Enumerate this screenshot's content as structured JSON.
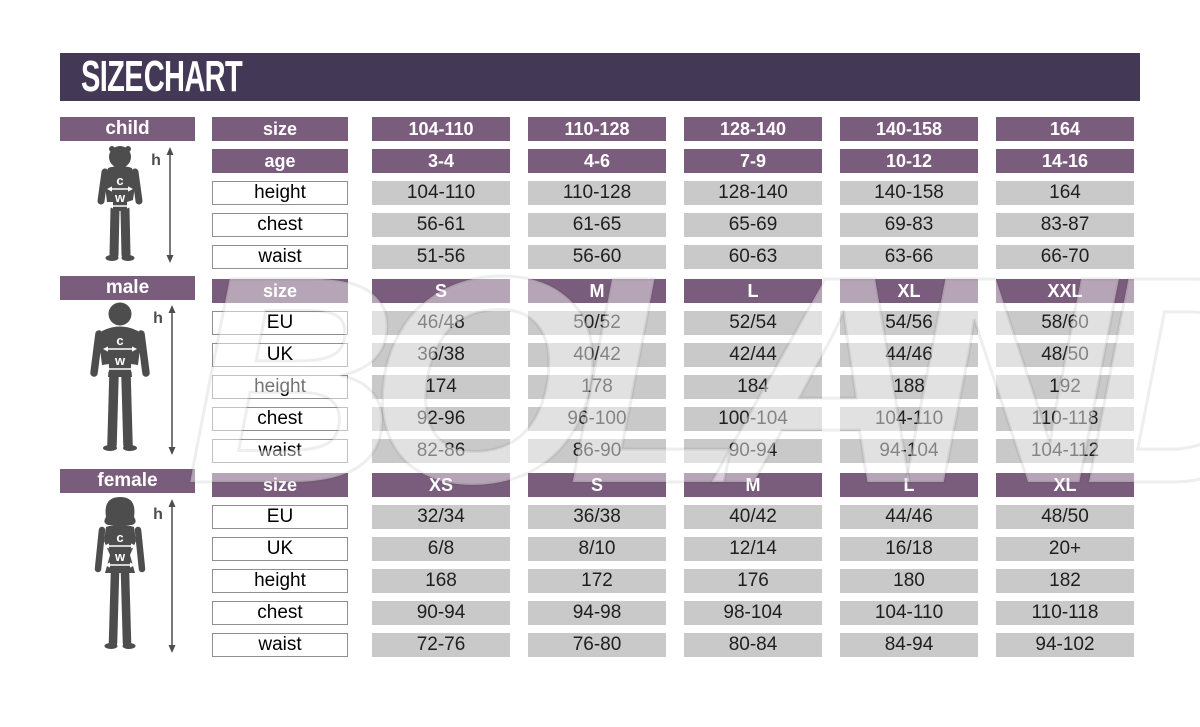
{
  "title": "SIZE CHART",
  "watermark": "BOLAND",
  "colors": {
    "banner_purple": "#443857",
    "header_plum": "#7a5c7d",
    "cell_gray": "#c9c9c9",
    "figure_gray": "#4d4d4d",
    "label_border": "#8f8f8f"
  },
  "figure_labels": {
    "height": "h",
    "chest": "c",
    "waist": "w"
  },
  "chart_data": [
    {
      "id": "child",
      "type": "table",
      "section_label": "child",
      "rows": [
        {
          "label": "size",
          "header": true,
          "values": [
            "104-110",
            "110-128",
            "128-140",
            "140-158",
            "164"
          ]
        },
        {
          "label": "age",
          "header": true,
          "values": [
            "3-4",
            "4-6",
            "7-9",
            "10-12",
            "14-16"
          ]
        },
        {
          "label": "height",
          "header": false,
          "values": [
            "104-110",
            "110-128",
            "128-140",
            "140-158",
            "164"
          ]
        },
        {
          "label": "chest",
          "header": false,
          "values": [
            "56-61",
            "61-65",
            "65-69",
            "69-83",
            "83-87"
          ]
        },
        {
          "label": "waist",
          "header": false,
          "values": [
            "51-56",
            "56-60",
            "60-63",
            "63-66",
            "66-70"
          ]
        }
      ]
    },
    {
      "id": "male",
      "type": "table",
      "section_label": "male",
      "rows": [
        {
          "label": "size",
          "header": true,
          "values": [
            "S",
            "M",
            "L",
            "XL",
            "XXL"
          ]
        },
        {
          "label": "EU",
          "header": false,
          "values": [
            "46/48",
            "50/52",
            "52/54",
            "54/56",
            "58/60"
          ]
        },
        {
          "label": "UK",
          "header": false,
          "values": [
            "36/38",
            "40/42",
            "42/44",
            "44/46",
            "48/50"
          ]
        },
        {
          "label": "height",
          "header": false,
          "values": [
            "174",
            "178",
            "184",
            "188",
            "192"
          ]
        },
        {
          "label": "chest",
          "header": false,
          "values": [
            "92-96",
            "96-100",
            "100-104",
            "104-110",
            "110-118"
          ]
        },
        {
          "label": "waist",
          "header": false,
          "values": [
            "82-86",
            "86-90",
            "90-94",
            "94-104",
            "104-112"
          ]
        }
      ]
    },
    {
      "id": "female",
      "type": "table",
      "section_label": "female",
      "rows": [
        {
          "label": "size",
          "header": true,
          "values": [
            "XS",
            "S",
            "M",
            "L",
            "XL"
          ]
        },
        {
          "label": "EU",
          "header": false,
          "values": [
            "32/34",
            "36/38",
            "40/42",
            "44/46",
            "48/50"
          ]
        },
        {
          "label": "UK",
          "header": false,
          "values": [
            "6/8",
            "8/10",
            "12/14",
            "16/18",
            "20+"
          ]
        },
        {
          "label": "height",
          "header": false,
          "values": [
            "168",
            "172",
            "176",
            "180",
            "182"
          ]
        },
        {
          "label": "chest",
          "header": false,
          "values": [
            "90-94",
            "94-98",
            "98-104",
            "104-110",
            "110-118"
          ]
        },
        {
          "label": "waist",
          "header": false,
          "values": [
            "72-76",
            "76-80",
            "80-84",
            "84-94",
            "94-102"
          ]
        }
      ]
    }
  ]
}
